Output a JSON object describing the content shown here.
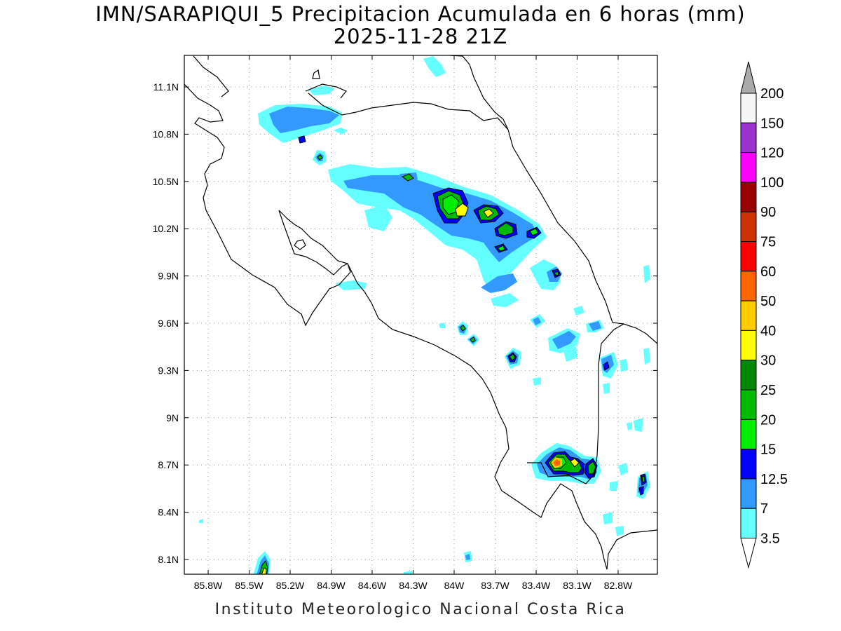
{
  "title": "IMN/SARAPIQUI_5 Precipitacion Acumulada en 6 horas (mm)",
  "subtitle": "2025-11-28 21Z",
  "footer": "Instituto Meteorologico Nacional Costa Rica",
  "map": {
    "lon_range": [
      -86.0,
      -82.8
    ],
    "lat_range": [
      8.0,
      11.3
    ],
    "lon_ticks": [
      {
        "value": -85.8,
        "label": "85.8W"
      },
      {
        "value": -85.5,
        "label": "85.5W"
      },
      {
        "value": -85.2,
        "label": "85.2W"
      },
      {
        "value": -84.9,
        "label": "84.9W"
      },
      {
        "value": -84.6,
        "label": "84.6W"
      },
      {
        "value": -84.3,
        "label": "84.3W"
      },
      {
        "value": -84.0,
        "label": "84W"
      },
      {
        "value": -83.7,
        "label": "83.7W"
      },
      {
        "value": -83.4,
        "label": "83.4W"
      },
      {
        "value": -83.1,
        "label": "83.1W"
      },
      {
        "value": -82.8,
        "label": "82.8W"
      }
    ],
    "lat_ticks": [
      {
        "value": 11.1,
        "label": "11.1N"
      },
      {
        "value": 10.8,
        "label": "10.8N"
      },
      {
        "value": 10.5,
        "label": "10.5N"
      },
      {
        "value": 10.2,
        "label": "10.2N"
      },
      {
        "value": 9.9,
        "label": "9.9N"
      },
      {
        "value": 9.6,
        "label": "9.6N"
      },
      {
        "value": 9.3,
        "label": "9.3N"
      },
      {
        "value": 9.0,
        "label": "9N"
      },
      {
        "value": 8.7,
        "label": "8.7N"
      },
      {
        "value": 8.4,
        "label": "8.4N"
      },
      {
        "value": 8.1,
        "label": "8.1N"
      }
    ],
    "grid": "dotted"
  },
  "colorbar": {
    "levels": [
      {
        "label": "200",
        "color": "#f5f5f5"
      },
      {
        "label": "150",
        "color": "#9933cc"
      },
      {
        "label": "120",
        "color": "#ff00ff"
      },
      {
        "label": "100",
        "color": "#990000"
      },
      {
        "label": "90",
        "color": "#cc3300"
      },
      {
        "label": "75",
        "color": "#ff0000"
      },
      {
        "label": "60",
        "color": "#ff6600"
      },
      {
        "label": "50",
        "color": "#ffcc00"
      },
      {
        "label": "40",
        "color": "#ffff00"
      },
      {
        "label": "30",
        "color": "#008800"
      },
      {
        "label": "25",
        "color": "#00bb00"
      },
      {
        "label": "20",
        "color": "#00ee00"
      },
      {
        "label": "15",
        "color": "#0000ff"
      },
      {
        "label": "12.5",
        "color": "#3399ff"
      },
      {
        "label": "7",
        "color": "#66ffff"
      },
      {
        "label": "3.5",
        "color": "#ffffff"
      }
    ],
    "top_arrow_color": "#aaaaaa",
    "bottom_arrow_color": "#ffffff"
  },
  "precip_colors": {
    "c3": "#66ffff",
    "c7": "#3399ff",
    "c12": "#0000ff",
    "c15": "#00ee00",
    "c20": "#00bb00",
    "c30": "#ffff00",
    "c50": "#ffcc00",
    "c60": "#ff6600",
    "c75": "#ff0000"
  }
}
